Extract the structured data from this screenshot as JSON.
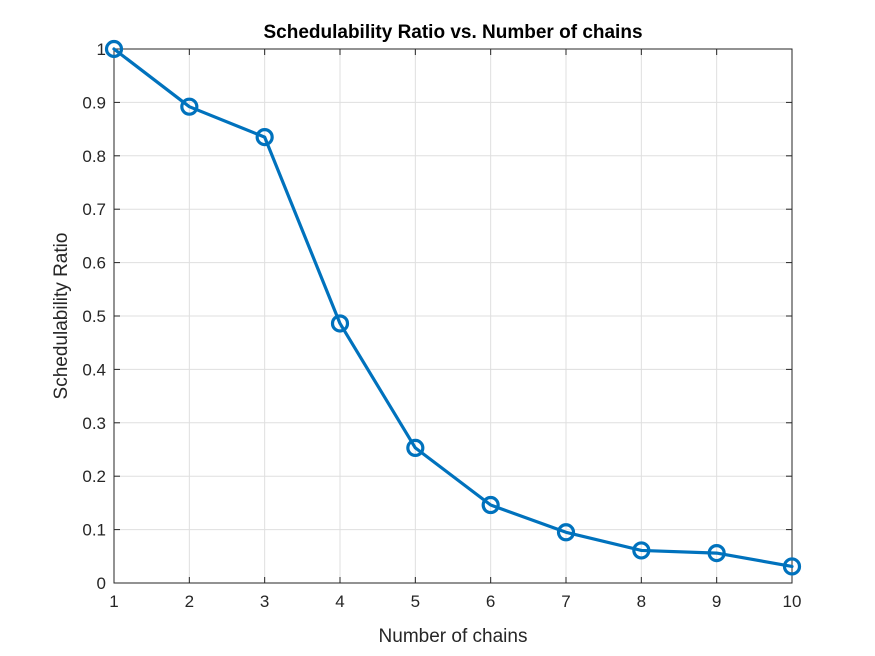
{
  "chart_data": {
    "type": "line",
    "title": "Schedulability Ratio vs. Number of chains",
    "xlabel": "Number of chains",
    "ylabel": "Schedulability Ratio",
    "x": [
      1,
      2,
      3,
      4,
      5,
      6,
      7,
      8,
      9,
      10
    ],
    "series": [
      {
        "values": [
          1.0,
          0.892,
          0.835,
          0.486,
          0.253,
          0.146,
          0.095,
          0.061,
          0.056,
          0.031
        ],
        "color": "#0072BD",
        "marker": "circle"
      }
    ],
    "xlim": [
      1,
      10
    ],
    "ylim": [
      0,
      1
    ],
    "xticks": [
      1,
      2,
      3,
      4,
      5,
      6,
      7,
      8,
      9,
      10
    ],
    "xtick_labels": [
      "1",
      "2",
      "3",
      "4",
      "5",
      "6",
      "7",
      "8",
      "9",
      "10"
    ],
    "yticks": [
      0,
      0.1,
      0.2,
      0.3,
      0.4,
      0.5,
      0.6,
      0.7,
      0.8,
      0.9,
      1
    ],
    "ytick_labels": [
      "0",
      "0.1",
      "0.2",
      "0.3",
      "0.4",
      "0.5",
      "0.6",
      "0.7",
      "0.8",
      "0.9",
      "1"
    ],
    "grid": true,
    "legend": "none"
  }
}
